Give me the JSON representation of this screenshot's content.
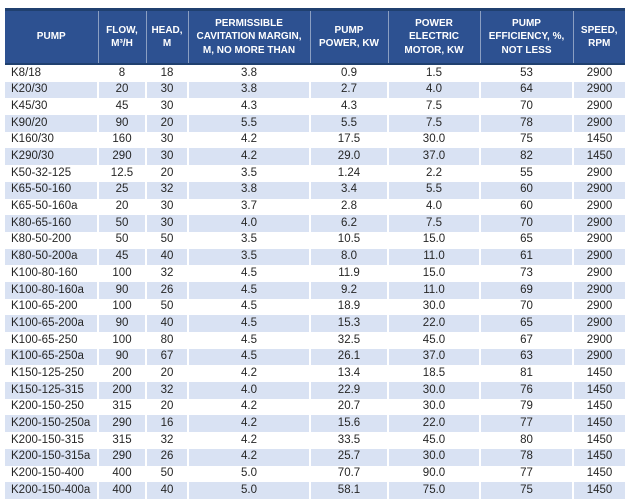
{
  "colors": {
    "header_bg": "#2d5191",
    "header_border": "#20406f",
    "header_text": "#ffffff",
    "stripe": "#d9e2f3",
    "row_bg": "#ffffff",
    "cell_text": "#262626"
  },
  "table": {
    "header_labels": [
      "PUMP",
      "FLOW,\nM³/H",
      "HEAD,\nM",
      "PERMISSIBLE\nCAVITATION MARGIN,\nM, NO MORE THAN",
      "PUMP\nPOWER, KW",
      "POWER\nELECTRIC\nMOTOR, KW",
      "PUMP\nEFFICIENCY, %,\nNOT LESS",
      "SPEED,\nRPM"
    ],
    "column_keys": [
      "pump",
      "flow",
      "head",
      "cavitation-margin",
      "pump-power",
      "motor-power",
      "efficiency",
      "speed"
    ]
  },
  "chart_data": {
    "type": "table",
    "title": "Pump specifications",
    "columns": [
      "PUMP",
      "FLOW, M³/H",
      "HEAD, M",
      "PERMISSIBLE CAVITATION MARGIN, M, NO MORE THAN",
      "PUMP POWER, KW",
      "POWER ELECTRIC MOTOR, KW",
      "PUMP EFFICIENCY, %, NOT LESS",
      "SPEED, RPM"
    ],
    "rows": [
      [
        "K8/18",
        "8",
        "18",
        "3.8",
        "0.9",
        "1.5",
        "53",
        "2900"
      ],
      [
        "K20/30",
        "20",
        "30",
        "3.8",
        "2.7",
        "4.0",
        "64",
        "2900"
      ],
      [
        "K45/30",
        "45",
        "30",
        "4.3",
        "4.3",
        "7.5",
        "70",
        "2900"
      ],
      [
        "K90/20",
        "90",
        "20",
        "5.5",
        "5.5",
        "7.5",
        "78",
        "2900"
      ],
      [
        "K160/30",
        "160",
        "30",
        "4.2",
        "17.5",
        "30.0",
        "75",
        "1450"
      ],
      [
        "K290/30",
        "290",
        "30",
        "4.2",
        "29.0",
        "37.0",
        "82",
        "1450"
      ],
      [
        "K50-32-125",
        "12.5",
        "20",
        "3.5",
        "1.24",
        "2.2",
        "55",
        "2900"
      ],
      [
        "K65-50-160",
        "25",
        "32",
        "3.8",
        "3.4",
        "5.5",
        "60",
        "2900"
      ],
      [
        "K65-50-160a",
        "20",
        "30",
        "3.7",
        "2.8",
        "4.0",
        "60",
        "2900"
      ],
      [
        "K80-65-160",
        "50",
        "30",
        "4.0",
        "6.2",
        "7.5",
        "70",
        "2900"
      ],
      [
        "K80-50-200",
        "50",
        "50",
        "3.5",
        "10.5",
        "15.0",
        "65",
        "2900"
      ],
      [
        "K80-50-200a",
        "45",
        "40",
        "3.5",
        "8.0",
        "11.0",
        "61",
        "2900"
      ],
      [
        "K100-80-160",
        "100",
        "32",
        "4.5",
        "11.9",
        "15.0",
        "73",
        "2900"
      ],
      [
        "K100-80-160a",
        "90",
        "26",
        "4.5",
        "9.2",
        "11.0",
        "69",
        "2900"
      ],
      [
        "K100-65-200",
        "100",
        "50",
        "4.5",
        "18.9",
        "30.0",
        "70",
        "2900"
      ],
      [
        "K100-65-200a",
        "90",
        "40",
        "4.5",
        "15.3",
        "22.0",
        "65",
        "2900"
      ],
      [
        "K100-65-250",
        "100",
        "80",
        "4.5",
        "32.5",
        "45.0",
        "67",
        "2900"
      ],
      [
        "K100-65-250a",
        "90",
        "67",
        "4.5",
        "26.1",
        "37.0",
        "63",
        "2900"
      ],
      [
        "K150-125-250",
        "200",
        "20",
        "4.2",
        "13.4",
        "18.5",
        "81",
        "1450"
      ],
      [
        "K150-125-315",
        "200",
        "32",
        "4.0",
        "22.9",
        "30.0",
        "76",
        "1450"
      ],
      [
        "K200-150-250",
        "315",
        "20",
        "4.2",
        "20.7",
        "30.0",
        "79",
        "1450"
      ],
      [
        "K200-150-250a",
        "290",
        "16",
        "4.2",
        "15.6",
        "22.0",
        "77",
        "1450"
      ],
      [
        "K200-150-315",
        "315",
        "32",
        "4.2",
        "33.5",
        "45.0",
        "80",
        "1450"
      ],
      [
        "K200-150-315a",
        "290",
        "26",
        "4.2",
        "25.7",
        "30.0",
        "78",
        "1450"
      ],
      [
        "K200-150-400",
        "400",
        "50",
        "5.0",
        "70.7",
        "90.0",
        "77",
        "1450"
      ],
      [
        "K200-150-400a",
        "400",
        "40",
        "5.0",
        "58.1",
        "75.0",
        "75",
        "1450"
      ]
    ]
  }
}
